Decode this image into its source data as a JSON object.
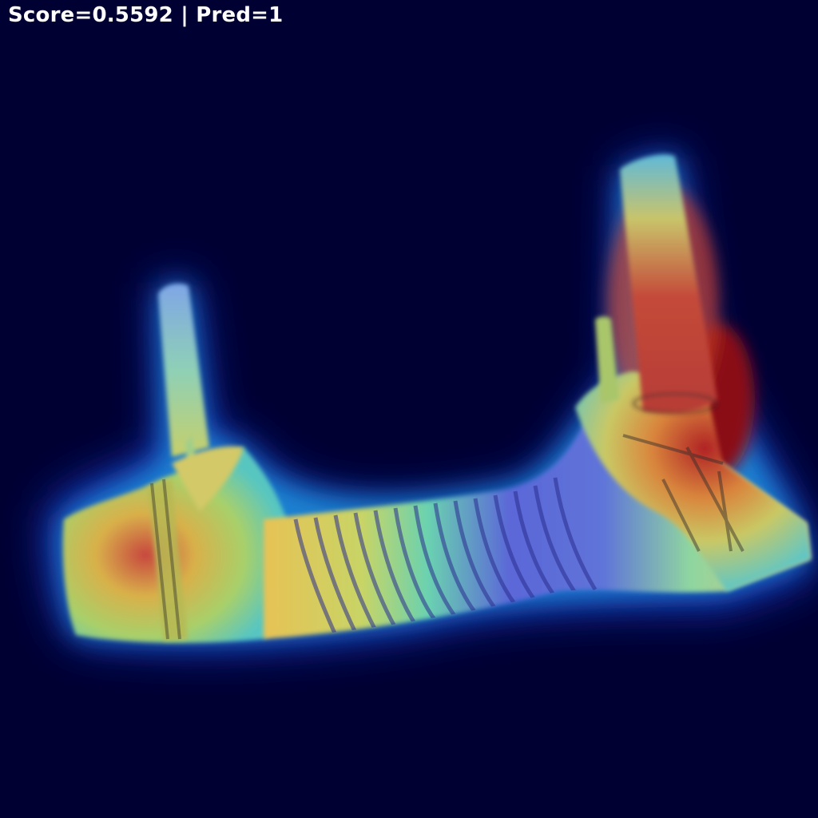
{
  "overlay": {
    "score_label": "Score=0.5592",
    "separator": "|",
    "pred_label": "Pred=1"
  },
  "heatmap": {
    "colormap": "jet",
    "background_color": "#000033"
  }
}
